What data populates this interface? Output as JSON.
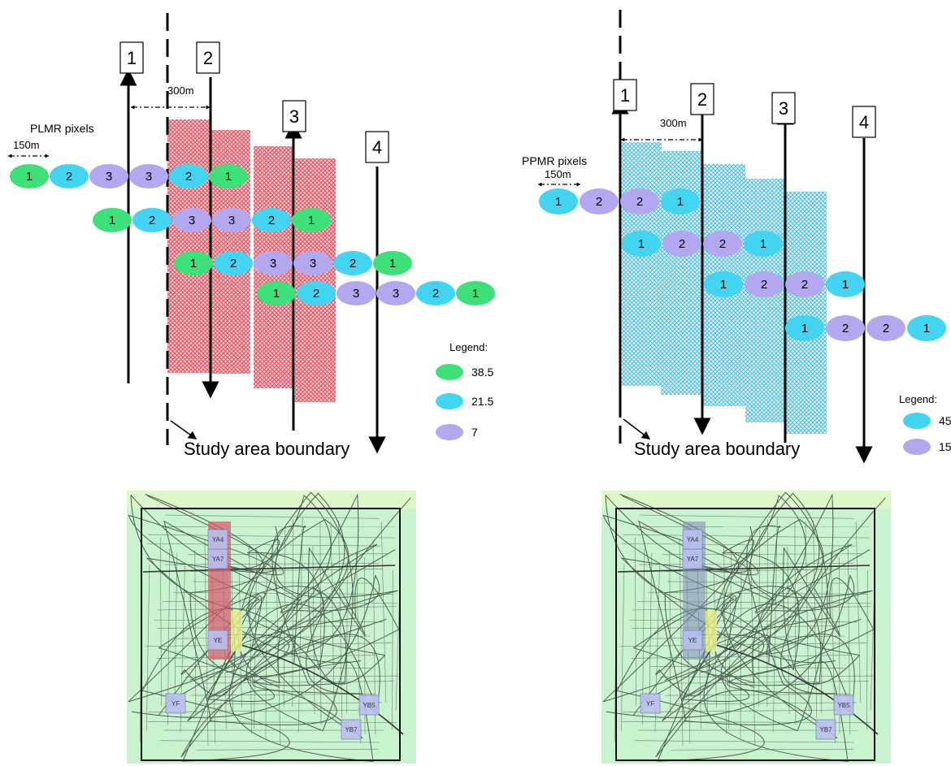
{
  "left_panel": {
    "flights": [
      "1",
      "2",
      "3",
      "4"
    ],
    "spacing_label": "300m",
    "pixel_label": "PLMR pixels",
    "pixel_size_label": "150m",
    "boundary_label": "Study area boundary",
    "legend_title": "Legend:",
    "legend": [
      {
        "value": "38.5",
        "color": "#3ee07a"
      },
      {
        "value": "21.5",
        "color": "#42d4f0"
      },
      {
        "value": "7",
        "color": "#b3a8ef"
      }
    ],
    "rows": [
      [
        "1",
        "2",
        "3",
        "3",
        "2",
        "1"
      ],
      [
        "1",
        "2",
        "3",
        "3",
        "2",
        "1"
      ],
      [
        "1",
        "2",
        "3",
        "3",
        "2",
        "1"
      ],
      [
        "1",
        "2",
        "3",
        "3",
        "2",
        "1"
      ]
    ],
    "swath_color": "#e23a4a"
  },
  "right_panel": {
    "flights": [
      "1",
      "2",
      "3",
      "4"
    ],
    "spacing_label": "300m",
    "pixel_label": "PPMR pixels",
    "pixel_size_label": "150m",
    "boundary_label": "Study area boundary",
    "legend_title": "Legend:",
    "legend": [
      {
        "value": "45",
        "color": "#42d4f0"
      },
      {
        "value": "15",
        "color": "#b3a8ef"
      }
    ],
    "rows": [
      [
        "1",
        "2",
        "2",
        "1"
      ],
      [
        "1",
        "2",
        "2",
        "1"
      ],
      [
        "1",
        "2",
        "2",
        "1"
      ],
      [
        "1",
        "2",
        "2",
        "1"
      ]
    ],
    "swath_color": "#38b6d8"
  },
  "maps": {
    "left_overlay_color": "#d9556a",
    "right_overlay_color": "#7d8ab8",
    "sites": [
      "YA4",
      "YA7",
      "YE",
      "YF",
      "YB5",
      "YB7"
    ]
  }
}
